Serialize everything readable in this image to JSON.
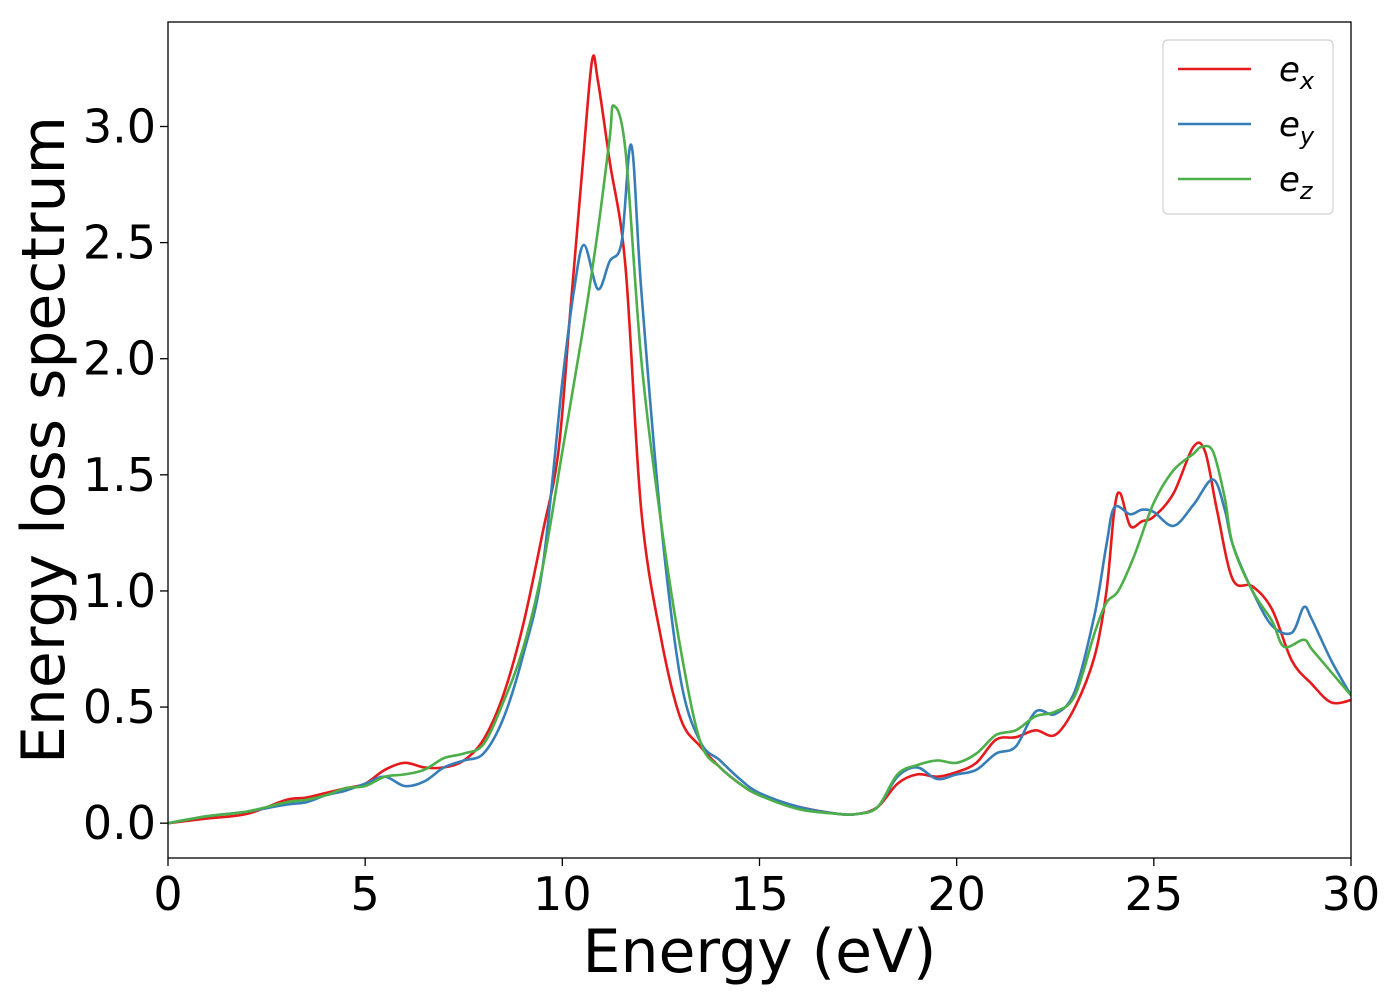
{
  "chart_data": {
    "type": "line",
    "title": "",
    "xlabel": "Energy (eV)",
    "ylabel": "Energy loss spectrum",
    "xlim": [
      0,
      30
    ],
    "ylim": [
      -0.15,
      3.45
    ],
    "xticks": [
      0,
      5,
      10,
      15,
      20,
      25,
      30
    ],
    "xtick_labels": [
      "0",
      "5",
      "10",
      "15",
      "20",
      "25",
      "30"
    ],
    "yticks": [
      0.0,
      0.5,
      1.0,
      1.5,
      2.0,
      2.5,
      3.0
    ],
    "ytick_labels": [
      "0.0",
      "0.5",
      "1.0",
      "1.5",
      "2.0",
      "2.5",
      "3.0"
    ],
    "grid": false,
    "legend_position": "top-right",
    "series": [
      {
        "name": "e",
        "subscript": "x",
        "color": "#e41a1c",
        "points": [
          [
            0,
            0
          ],
          [
            1,
            0.02
          ],
          [
            2,
            0.04
          ],
          [
            3,
            0.1
          ],
          [
            3.5,
            0.11
          ],
          [
            4,
            0.13
          ],
          [
            4.5,
            0.15
          ],
          [
            5,
            0.17
          ],
          [
            5.5,
            0.23
          ],
          [
            6,
            0.26
          ],
          [
            6.5,
            0.24
          ],
          [
            7,
            0.24
          ],
          [
            7.5,
            0.27
          ],
          [
            8,
            0.36
          ],
          [
            8.5,
            0.55
          ],
          [
            9,
            0.85
          ],
          [
            9.5,
            1.25
          ],
          [
            9.9,
            1.6
          ],
          [
            10.2,
            2.2
          ],
          [
            10.5,
            2.8
          ],
          [
            10.75,
            3.28
          ],
          [
            10.9,
            3.2
          ],
          [
            11.2,
            2.85
          ],
          [
            11.6,
            2.4
          ],
          [
            12,
            1.35
          ],
          [
            12.5,
            0.8
          ],
          [
            13,
            0.45
          ],
          [
            13.5,
            0.33
          ],
          [
            14,
            0.24
          ],
          [
            14.5,
            0.17
          ],
          [
            15,
            0.12
          ],
          [
            16,
            0.07
          ],
          [
            17,
            0.04
          ],
          [
            17.5,
            0.04
          ],
          [
            18,
            0.07
          ],
          [
            18.5,
            0.17
          ],
          [
            19,
            0.21
          ],
          [
            19.5,
            0.2
          ],
          [
            20,
            0.22
          ],
          [
            20.5,
            0.26
          ],
          [
            21,
            0.36
          ],
          [
            21.5,
            0.37
          ],
          [
            22,
            0.4
          ],
          [
            22.5,
            0.38
          ],
          [
            23,
            0.5
          ],
          [
            23.5,
            0.72
          ],
          [
            23.8,
            1.0
          ],
          [
            24,
            1.35
          ],
          [
            24.15,
            1.42
          ],
          [
            24.4,
            1.28
          ],
          [
            24.7,
            1.3
          ],
          [
            25,
            1.32
          ],
          [
            25.5,
            1.42
          ],
          [
            26,
            1.62
          ],
          [
            26.3,
            1.6
          ],
          [
            26.6,
            1.35
          ],
          [
            27,
            1.05
          ],
          [
            27.5,
            1.02
          ],
          [
            28,
            0.92
          ],
          [
            28.5,
            0.7
          ],
          [
            29,
            0.6
          ],
          [
            29.5,
            0.52
          ],
          [
            30,
            0.53
          ]
        ]
      },
      {
        "name": "e",
        "subscript": "y",
        "color": "#377eb8",
        "points": [
          [
            0,
            0
          ],
          [
            1,
            0.03
          ],
          [
            2,
            0.05
          ],
          [
            3,
            0.08
          ],
          [
            3.5,
            0.09
          ],
          [
            4,
            0.12
          ],
          [
            4.5,
            0.14
          ],
          [
            5,
            0.17
          ],
          [
            5.5,
            0.2
          ],
          [
            6,
            0.16
          ],
          [
            6.5,
            0.18
          ],
          [
            7,
            0.24
          ],
          [
            7.5,
            0.27
          ],
          [
            8,
            0.3
          ],
          [
            8.5,
            0.45
          ],
          [
            9,
            0.72
          ],
          [
            9.5,
            1.1
          ],
          [
            10,
            1.9
          ],
          [
            10.3,
            2.3
          ],
          [
            10.55,
            2.49
          ],
          [
            10.9,
            2.3
          ],
          [
            11.2,
            2.42
          ],
          [
            11.5,
            2.5
          ],
          [
            11.75,
            2.92
          ],
          [
            12,
            2.3
          ],
          [
            12.5,
            1.3
          ],
          [
            13,
            0.62
          ],
          [
            13.5,
            0.35
          ],
          [
            14,
            0.27
          ],
          [
            14.5,
            0.19
          ],
          [
            15,
            0.13
          ],
          [
            16,
            0.07
          ],
          [
            17,
            0.04
          ],
          [
            17.5,
            0.04
          ],
          [
            18,
            0.07
          ],
          [
            18.5,
            0.2
          ],
          [
            19,
            0.24
          ],
          [
            19.5,
            0.19
          ],
          [
            20,
            0.21
          ],
          [
            20.5,
            0.23
          ],
          [
            21,
            0.3
          ],
          [
            21.5,
            0.33
          ],
          [
            22,
            0.48
          ],
          [
            22.5,
            0.47
          ],
          [
            23,
            0.57
          ],
          [
            23.5,
            0.9
          ],
          [
            23.8,
            1.2
          ],
          [
            24,
            1.36
          ],
          [
            24.4,
            1.33
          ],
          [
            24.7,
            1.35
          ],
          [
            25,
            1.34
          ],
          [
            25.5,
            1.28
          ],
          [
            26,
            1.37
          ],
          [
            26.5,
            1.48
          ],
          [
            26.8,
            1.35
          ],
          [
            27,
            1.2
          ],
          [
            27.5,
            1.0
          ],
          [
            28,
            0.85
          ],
          [
            28.5,
            0.82
          ],
          [
            28.8,
            0.93
          ],
          [
            29,
            0.88
          ],
          [
            29.5,
            0.7
          ],
          [
            30,
            0.55
          ]
        ]
      },
      {
        "name": "e",
        "subscript": "z",
        "color": "#4daf4a",
        "points": [
          [
            0,
            0
          ],
          [
            1,
            0.03
          ],
          [
            2,
            0.05
          ],
          [
            3,
            0.09
          ],
          [
            3.5,
            0.1
          ],
          [
            4,
            0.12
          ],
          [
            4.5,
            0.15
          ],
          [
            5,
            0.16
          ],
          [
            5.5,
            0.2
          ],
          [
            6,
            0.21
          ],
          [
            6.5,
            0.23
          ],
          [
            7,
            0.28
          ],
          [
            7.5,
            0.3
          ],
          [
            8,
            0.34
          ],
          [
            8.5,
            0.52
          ],
          [
            9,
            0.75
          ],
          [
            9.5,
            1.1
          ],
          [
            10,
            1.6
          ],
          [
            10.5,
            2.1
          ],
          [
            10.9,
            2.55
          ],
          [
            11.2,
            2.95
          ],
          [
            11.3,
            3.09
          ],
          [
            11.6,
            2.9
          ],
          [
            12,
            2.0
          ],
          [
            12.5,
            1.3
          ],
          [
            13,
            0.75
          ],
          [
            13.5,
            0.35
          ],
          [
            14,
            0.24
          ],
          [
            14.5,
            0.17
          ],
          [
            15,
            0.12
          ],
          [
            16,
            0.06
          ],
          [
            17,
            0.04
          ],
          [
            17.5,
            0.04
          ],
          [
            18,
            0.07
          ],
          [
            18.5,
            0.21
          ],
          [
            19,
            0.25
          ],
          [
            19.5,
            0.27
          ],
          [
            20,
            0.26
          ],
          [
            20.5,
            0.3
          ],
          [
            21,
            0.38
          ],
          [
            21.5,
            0.4
          ],
          [
            22,
            0.46
          ],
          [
            22.5,
            0.48
          ],
          [
            23,
            0.55
          ],
          [
            23.5,
            0.82
          ],
          [
            23.8,
            0.95
          ],
          [
            24.1,
            1.0
          ],
          [
            24.5,
            1.15
          ],
          [
            25,
            1.38
          ],
          [
            25.5,
            1.52
          ],
          [
            26,
            1.59
          ],
          [
            26.2,
            1.62
          ],
          [
            26.5,
            1.6
          ],
          [
            26.8,
            1.4
          ],
          [
            27,
            1.2
          ],
          [
            27.5,
            1.0
          ],
          [
            28,
            0.87
          ],
          [
            28.3,
            0.76
          ],
          [
            28.8,
            0.79
          ],
          [
            29,
            0.75
          ],
          [
            29.5,
            0.65
          ],
          [
            30,
            0.55
          ]
        ]
      }
    ]
  }
}
